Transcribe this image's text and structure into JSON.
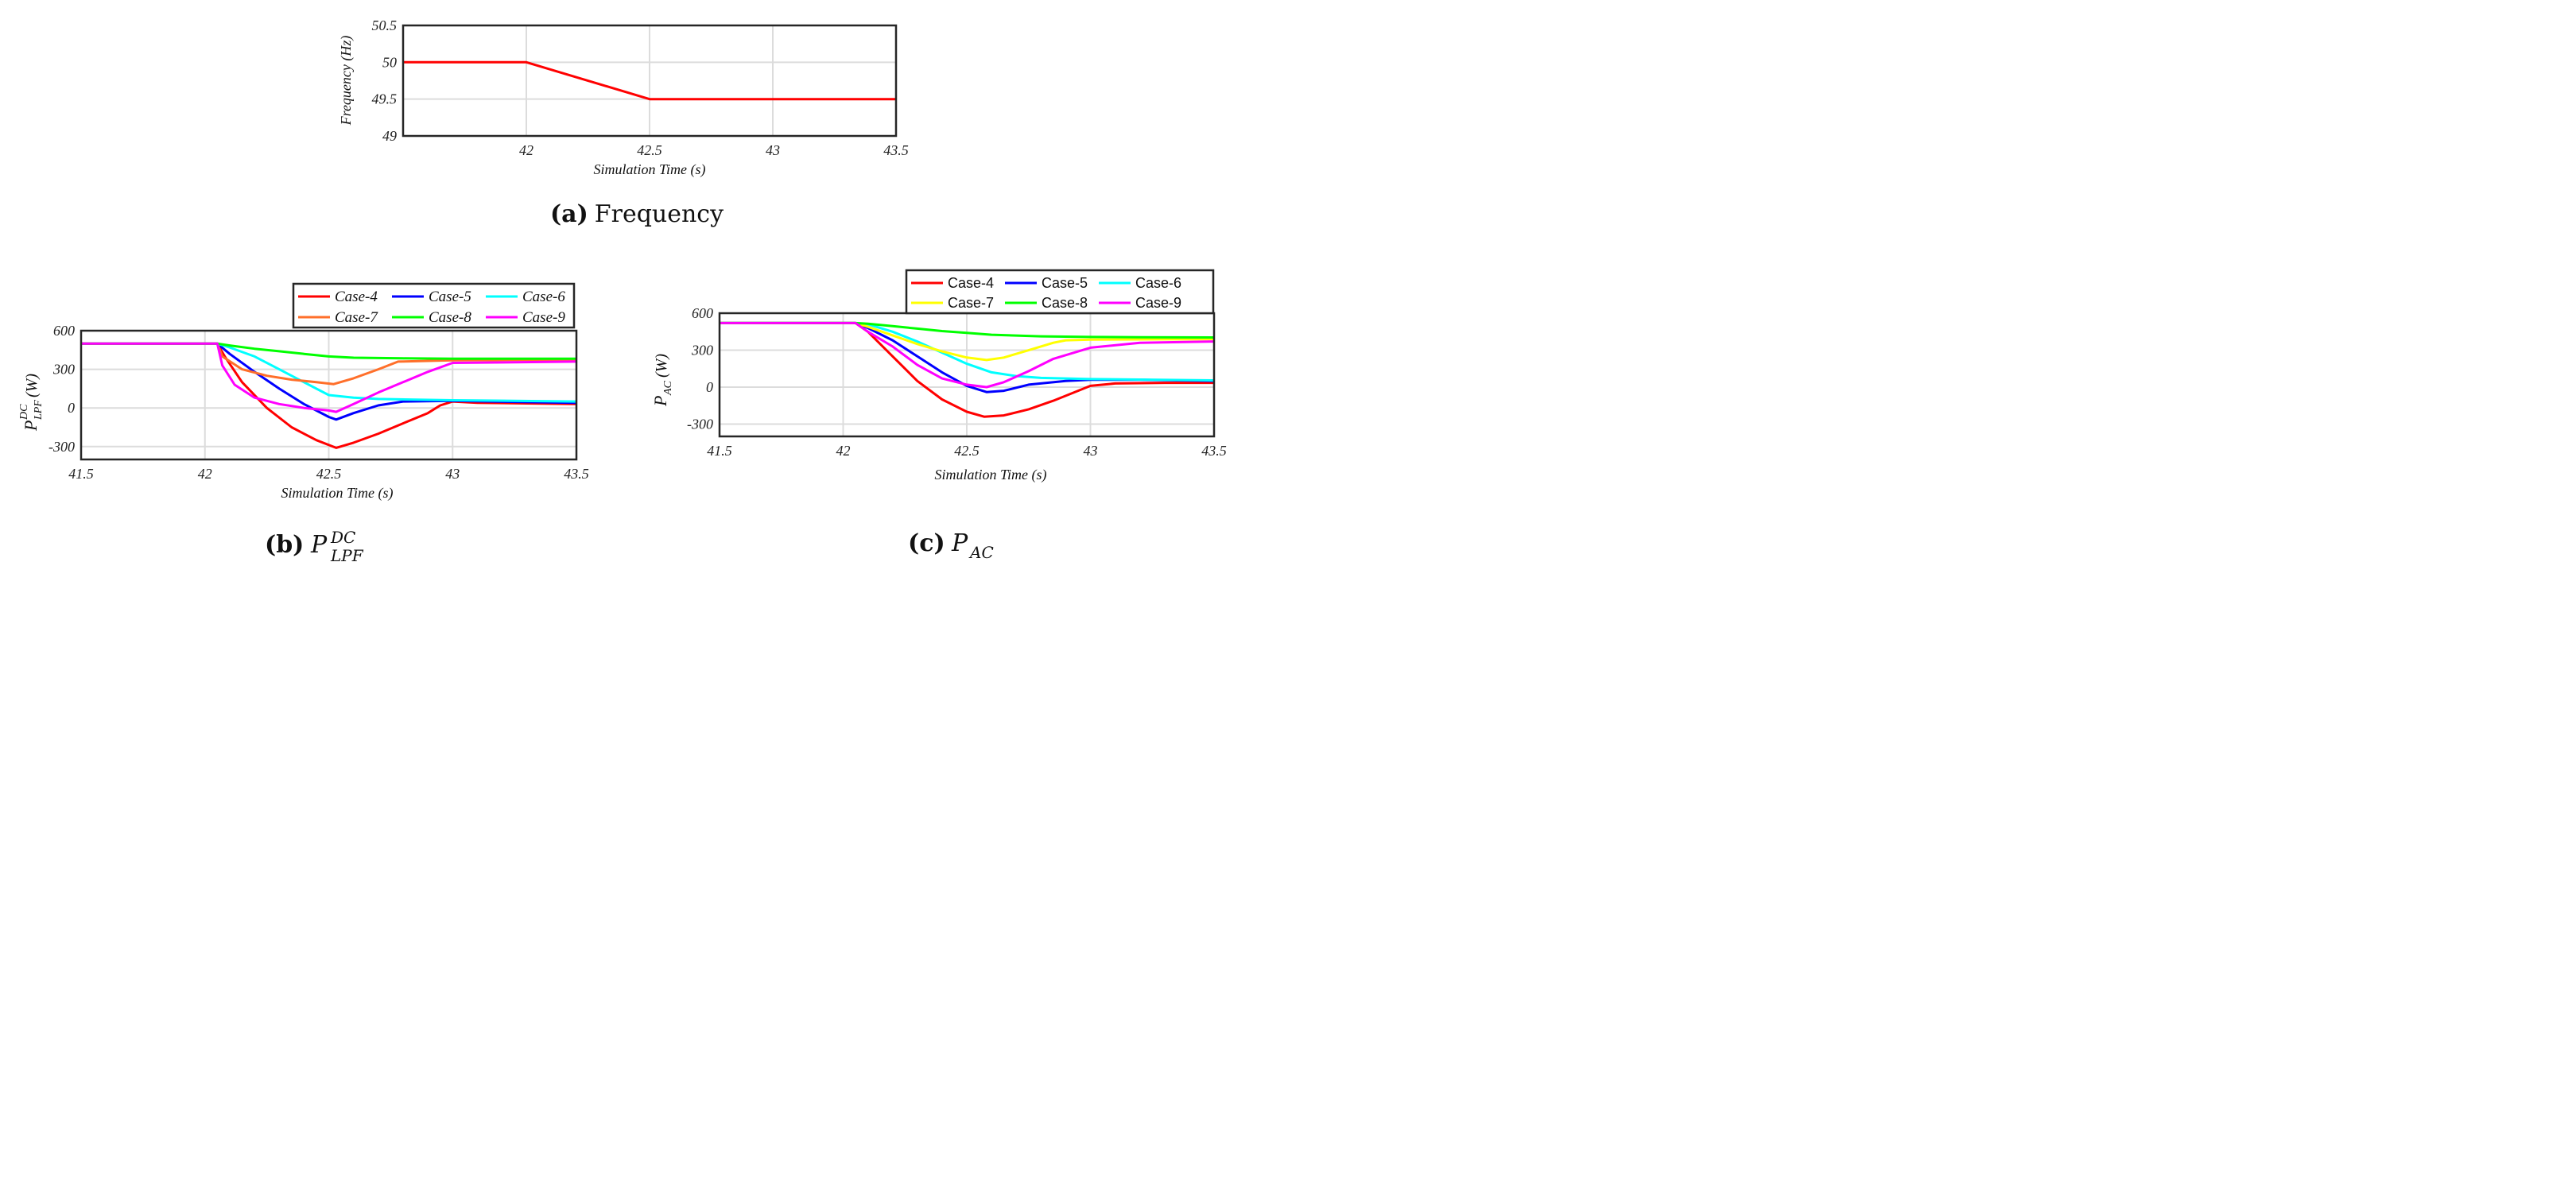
{
  "charts": [
    {
      "id": "a",
      "caption_tag": "(a)",
      "caption_text": "Frequency",
      "xlabel": "Simulation Time (s)",
      "ylabel": "Frequency (Hz)"
    },
    {
      "id": "b",
      "caption_tag": "(b)",
      "caption_text": "P",
      "caption_sup": "DC",
      "caption_sub": "LPF",
      "xlabel": "Simulation Time (s)",
      "ylabel": "P",
      "ylabel_sup": "DC",
      "ylabel_sub": "LPF",
      "ylabel_unit": "(W)"
    },
    {
      "id": "c",
      "caption_tag": "(c)",
      "caption_text": "P",
      "caption_sub": "AC",
      "xlabel": "Simulation Time (s)",
      "ylabel": "P",
      "ylabel_sub": "AC",
      "ylabel_unit": "(W)"
    }
  ],
  "chart_data": [
    {
      "id": "a",
      "type": "line",
      "title": "Frequency",
      "xlabel": "Simulation Time (s)",
      "ylabel": "Frequency (Hz)",
      "xlim": [
        41.5,
        43.5
      ],
      "ylim": [
        49,
        50.5
      ],
      "xticks": [
        42,
        42.5,
        43,
        43.5
      ],
      "xtick_labels": [
        "42",
        "42.5",
        "43",
        "43.5"
      ],
      "yticks": [
        49,
        49.5,
        50,
        50.5
      ],
      "ytick_labels": [
        "49",
        "49.5",
        "50",
        "50.5"
      ],
      "grid": true,
      "legend": "none",
      "series": [
        {
          "name": "Frequency",
          "color": "#ff0000",
          "x": [
            41.5,
            42.0,
            42.5,
            43.5
          ],
          "y": [
            50,
            50,
            49.5,
            49.5
          ]
        }
      ]
    },
    {
      "id": "b",
      "type": "line",
      "title": "P_LPF^DC",
      "xlabel": "Simulation Time (s)",
      "ylabel": "P_LPF^DC (W)",
      "xlim": [
        41.5,
        43.5
      ],
      "ylim": [
        -400,
        600
      ],
      "xticks": [
        41.5,
        42,
        42.5,
        43,
        43.5
      ],
      "xtick_labels": [
        "41.5",
        "42",
        "42.5",
        "43",
        "43.5"
      ],
      "yticks": [
        -300,
        0,
        300,
        600
      ],
      "ytick_labels": [
        "-300",
        "0",
        "300",
        "600"
      ],
      "grid": true,
      "legend": "top-right, outside",
      "series": [
        {
          "name": "Case-4",
          "color": "#ff0000",
          "x": [
            41.5,
            42.05,
            42.08,
            42.15,
            42.25,
            42.35,
            42.45,
            42.53,
            42.6,
            42.7,
            42.8,
            42.9,
            42.95,
            43.0,
            43.1,
            43.3,
            43.5
          ],
          "y": [
            500,
            500,
            400,
            200,
            0,
            -150,
            -250,
            -310,
            -270,
            -200,
            -120,
            -40,
            20,
            50,
            40,
            35,
            30
          ]
        },
        {
          "name": "Case-5",
          "color": "#0000ff",
          "x": [
            41.5,
            42.05,
            42.1,
            42.2,
            42.3,
            42.4,
            42.5,
            42.53,
            42.6,
            42.7,
            42.8,
            43.0,
            43.5
          ],
          "y": [
            500,
            500,
            420,
            280,
            150,
            30,
            -70,
            -90,
            -40,
            20,
            50,
            55,
            40
          ]
        },
        {
          "name": "Case-6",
          "color": "#00ffff",
          "x": [
            41.5,
            42.05,
            42.1,
            42.2,
            42.3,
            42.4,
            42.5,
            42.6,
            42.7,
            43.0,
            43.5
          ],
          "y": [
            500,
            500,
            470,
            400,
            300,
            200,
            100,
            80,
            70,
            60,
            50
          ]
        },
        {
          "name": "Case-7",
          "color": "#ff6f2a",
          "x": [
            41.5,
            42.05,
            42.07,
            42.15,
            42.25,
            42.35,
            42.45,
            42.52,
            42.6,
            42.7,
            42.78,
            43.0,
            43.5
          ],
          "y": [
            500,
            500,
            400,
            300,
            250,
            220,
            200,
            185,
            230,
            300,
            360,
            370,
            375
          ]
        },
        {
          "name": "Case-8",
          "color": "#00ff00",
          "x": [
            41.5,
            42.05,
            42.1,
            42.2,
            42.3,
            42.4,
            42.5,
            42.6,
            42.8,
            43.0,
            43.5
          ],
          "y": [
            500,
            500,
            485,
            460,
            440,
            420,
            400,
            390,
            385,
            383,
            382
          ]
        },
        {
          "name": "Case-9",
          "color": "#ff00ff",
          "x": [
            41.5,
            42.05,
            42.07,
            42.12,
            42.2,
            42.3,
            42.4,
            42.5,
            42.53,
            42.6,
            42.7,
            42.8,
            42.9,
            43.0,
            43.5
          ],
          "y": [
            500,
            500,
            330,
            180,
            80,
            30,
            0,
            -20,
            -30,
            30,
            120,
            200,
            280,
            350,
            360
          ]
        }
      ]
    },
    {
      "id": "c",
      "type": "line",
      "title": "P_AC",
      "xlabel": "Simulation Time (s)",
      "ylabel": "P_AC (W)",
      "xlim": [
        41.5,
        43.5
      ],
      "ylim": [
        -400,
        600
      ],
      "xticks": [
        41.5,
        42,
        42.5,
        43,
        43.5
      ],
      "xtick_labels": [
        "41.5",
        "42",
        "42.5",
        "43",
        "43.5"
      ],
      "yticks": [
        -300,
        0,
        300,
        600
      ],
      "ytick_labels": [
        "-300",
        "0",
        "300",
        "600"
      ],
      "grid": true,
      "legend": "top-right, outside",
      "series": [
        {
          "name": "Case-4",
          "color": "#ff0000",
          "x": [
            41.5,
            42.05,
            42.1,
            42.2,
            42.3,
            42.4,
            42.5,
            42.57,
            42.65,
            42.75,
            42.85,
            42.95,
            43.0,
            43.1,
            43.3,
            43.5
          ],
          "y": [
            520,
            520,
            450,
            250,
            50,
            -100,
            -200,
            -240,
            -230,
            -180,
            -110,
            -30,
            10,
            30,
            35,
            35
          ]
        },
        {
          "name": "Case-5",
          "color": "#0000ff",
          "x": [
            41.5,
            42.05,
            42.1,
            42.2,
            42.3,
            42.4,
            42.5,
            42.58,
            42.65,
            42.75,
            42.9,
            43.0,
            43.2,
            43.5
          ],
          "y": [
            520,
            520,
            480,
            380,
            250,
            120,
            10,
            -40,
            -30,
            20,
            50,
            60,
            60,
            50
          ]
        },
        {
          "name": "Case-6",
          "color": "#00ffff",
          "x": [
            41.5,
            42.05,
            42.1,
            42.2,
            42.3,
            42.4,
            42.5,
            42.6,
            42.7,
            42.8,
            43.0,
            43.5
          ],
          "y": [
            520,
            520,
            510,
            450,
            370,
            280,
            190,
            120,
            90,
            75,
            65,
            55
          ]
        },
        {
          "name": "Case-7",
          "color": "#ffff00",
          "x": [
            41.5,
            42.05,
            42.1,
            42.2,
            42.3,
            42.4,
            42.5,
            42.58,
            42.65,
            42.75,
            42.85,
            42.9,
            43.0,
            43.5
          ],
          "y": [
            520,
            520,
            490,
            420,
            350,
            290,
            240,
            220,
            240,
            300,
            360,
            380,
            385,
            390
          ]
        },
        {
          "name": "Case-8",
          "color": "#00ff00",
          "x": [
            41.5,
            42.05,
            42.1,
            42.2,
            42.3,
            42.4,
            42.5,
            42.6,
            42.8,
            43.0,
            43.2,
            43.5
          ],
          "y": [
            520,
            520,
            515,
            495,
            475,
            455,
            440,
            425,
            412,
            407,
            405,
            403
          ]
        },
        {
          "name": "Case-9",
          "color": "#ff00ff",
          "x": [
            41.5,
            42.05,
            42.1,
            42.2,
            42.3,
            42.4,
            42.5,
            42.58,
            42.65,
            42.75,
            42.85,
            43.0,
            43.2,
            43.5
          ],
          "y": [
            520,
            520,
            450,
            330,
            180,
            70,
            20,
            0,
            40,
            130,
            230,
            320,
            360,
            370
          ]
        }
      ]
    }
  ]
}
